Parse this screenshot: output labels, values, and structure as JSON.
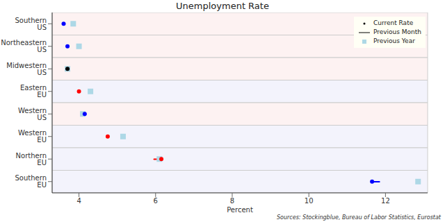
{
  "chart_data": {
    "type": "dot",
    "title": "Unemployment Rate",
    "x_label": "Percent",
    "source": "Sources: Stockingblue, Bureau of Labor Statistics, Eurostat",
    "categories": [
      "Southern US",
      "Northeastern US",
      "Midwestern US",
      "Eastern EU",
      "Western US",
      "Western EU",
      "Northern EU",
      "Southern EU"
    ],
    "series": [
      {
        "name": "Current Rate",
        "values": [
          3.6,
          3.7,
          3.7,
          4.0,
          4.15,
          4.75,
          6.15,
          11.65
        ],
        "colors": [
          "#0000ff",
          "#0000ff",
          "#000000",
          "#ff0000",
          "#0000ff",
          "#ff0000",
          "#ff0000",
          "#0000ff"
        ],
        "marker": "circle"
      },
      {
        "name": "Previous Month",
        "values": [
          3.6,
          3.7,
          3.7,
          4.0,
          4.15,
          4.75,
          5.95,
          11.85
        ],
        "colors": [
          "#0000ff",
          "#0000ff",
          "#000000",
          "#ff0000",
          "#0000ff",
          "#ff0000",
          "#ff0000",
          "#0000ff"
        ],
        "line_style": "solid"
      },
      {
        "name": "Previous Year",
        "values": [
          3.85,
          4.0,
          3.7,
          4.3,
          4.1,
          5.15,
          6.1,
          12.85
        ],
        "color": "#add8e6",
        "marker": "square"
      }
    ],
    "xlim": [
      3.3,
      13.1
    ],
    "xticks": [
      4,
      6,
      8,
      10,
      12
    ],
    "grid": true,
    "legend": "top right"
  }
}
